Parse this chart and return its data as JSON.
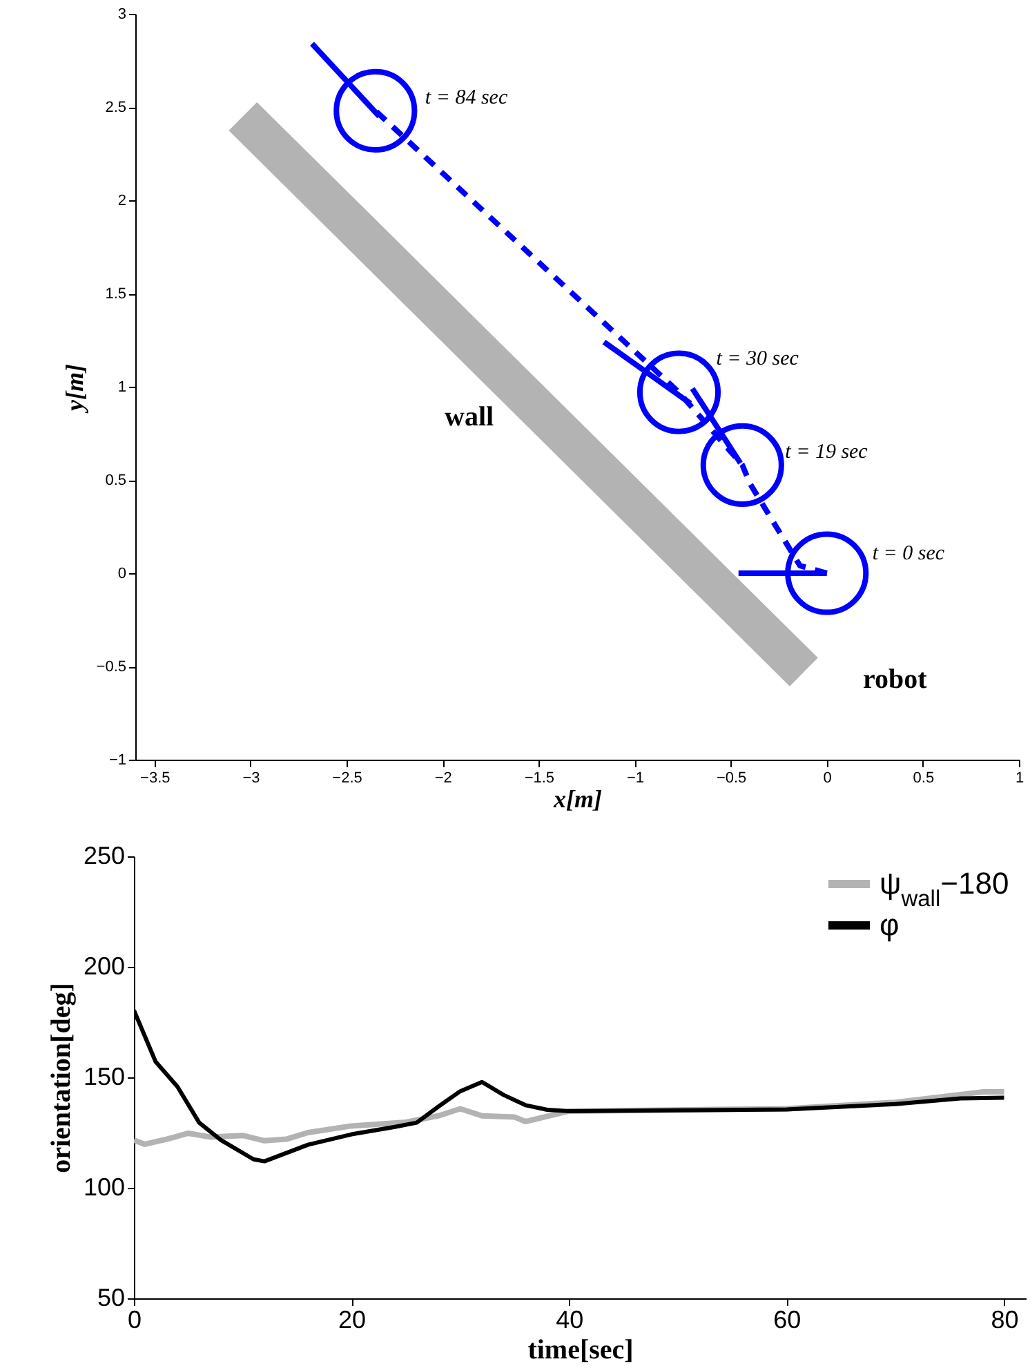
{
  "chart_data": [
    {
      "type": "line",
      "xlabel": "x[m]",
      "ylabel": "y[m]",
      "xlim": [
        -3.6,
        1
      ],
      "ylim": [
        -1,
        3
      ],
      "xticks": [
        -3.5,
        -3,
        -2.5,
        -2,
        -1.5,
        -1,
        -0.5,
        0,
        0.5,
        1
      ],
      "yticks": [
        -1,
        -0.5,
        0,
        0.5,
        1,
        1.5,
        2,
        2.5,
        3
      ],
      "grid": false,
      "series": [
        {
          "color": "#b3b3b3",
          "x": [
            -3.04,
            -0.12
          ],
          "values": [
            2.45,
            -0.53
          ]
        },
        {
          "color": "#0000ff",
          "line_style": "dashed",
          "x": [
            0,
            -0.14,
            -0.4,
            -0.44,
            -0.77,
            -2.35
          ],
          "values": [
            0,
            0.04,
            0.48,
            0.58,
            0.97,
            2.48
          ]
        },
        {
          "color": "#0000ff",
          "x": [
            -0.46,
            0
          ],
          "values": [
            0,
            0
          ]
        },
        {
          "color": "#0000ff",
          "x": [
            -0.7,
            -0.45
          ],
          "values": [
            0.99,
            0.59
          ]
        },
        {
          "color": "#0000ff",
          "x": [
            -1.16,
            -0.71
          ],
          "values": [
            1.24,
            0.91
          ]
        },
        {
          "color": "#0000ff",
          "x": [
            -2.68,
            -2.33
          ],
          "values": [
            2.84,
            2.45
          ]
        },
        {
          "type": "scatter",
          "color": "#0000ff",
          "marker": "circle",
          "x": [
            0,
            -0.44,
            -0.77,
            -2.35
          ],
          "values": [
            0,
            0.58,
            0.97,
            2.48
          ]
        }
      ],
      "annotations": [
        {
          "text": "t = 84 sec",
          "x": -2.35,
          "y": 2.48
        },
        {
          "text": "t = 30 sec",
          "x": -0.77,
          "y": 0.97
        },
        {
          "text": "t = 19 sec",
          "x": -0.44,
          "y": 0.58
        },
        {
          "text": "t = 0 sec",
          "x": 0,
          "y": 0
        },
        "wall",
        "robot"
      ]
    },
    {
      "type": "line",
      "xlabel": "time[sec]",
      "ylabel": "orientation[deg]",
      "xlim": [
        0,
        82
      ],
      "ylim": [
        50,
        250
      ],
      "xticks": [
        0,
        20,
        40,
        60,
        80
      ],
      "yticks": [
        50,
        100,
        150,
        200,
        250
      ],
      "grid": false,
      "legend": "top right",
      "series": [
        {
          "name": "ψ$_{wall}$−180",
          "color": "#b3b3b3",
          "x": [
            0,
            1,
            3,
            5,
            7,
            10,
            12,
            14,
            16,
            20,
            25,
            28,
            30,
            32,
            35,
            36,
            40,
            60,
            70,
            78,
            80
          ],
          "values": [
            121.6,
            119.7,
            122,
            124.7,
            123,
            123.7,
            121.3,
            122,
            125,
            128,
            129.7,
            132.6,
            135.8,
            132.6,
            132,
            130,
            134.7,
            135.8,
            138.7,
            143.4,
            143.4
          ]
        },
        {
          "name": "φ",
          "color": "#000000",
          "x": [
            0,
            2,
            4,
            6,
            8,
            11,
            12,
            16,
            20,
            24,
            26,
            28,
            30,
            32,
            34,
            36,
            38,
            40,
            60,
            70,
            76,
            80
          ],
          "values": [
            180.3,
            157,
            145.8,
            129.5,
            121.6,
            112.9,
            112,
            119.5,
            124.2,
            127.6,
            129.5,
            136.8,
            143.7,
            147.9,
            142,
            137.4,
            135.3,
            134.7,
            135.5,
            137.9,
            140.5,
            140.8
          ]
        }
      ]
    }
  ]
}
